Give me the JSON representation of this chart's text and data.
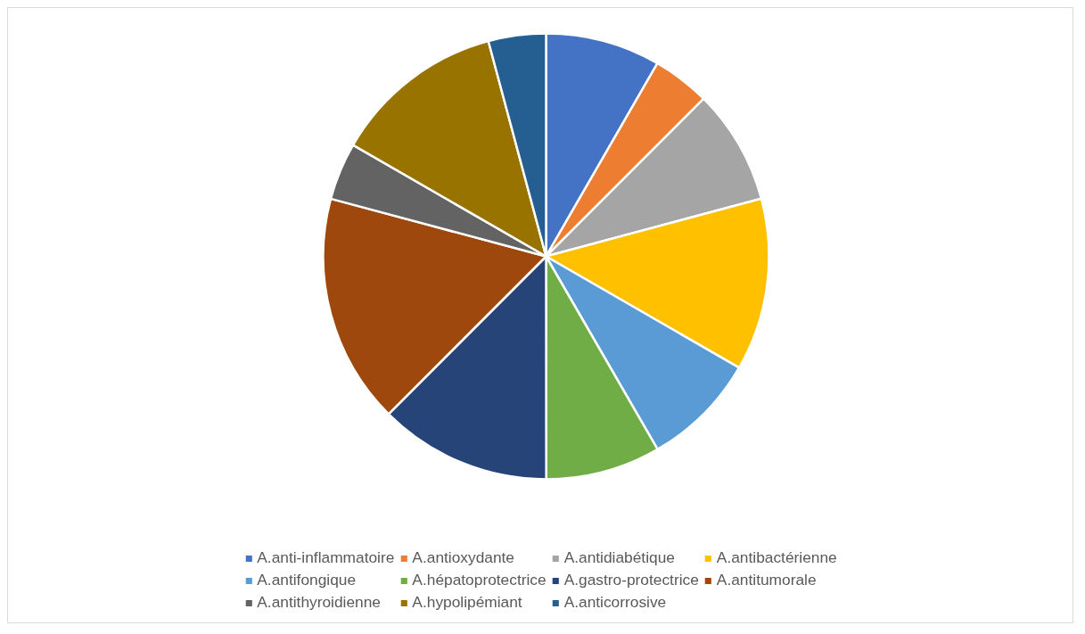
{
  "chart_data": {
    "type": "pie",
    "categories": [
      "A.anti-inflammatoire",
      "A.antioxydante",
      "A.antidiabétique",
      "A.antibactérienne",
      "A.antifongique",
      "A.hépatoprotectrice",
      "A.gastro-protectrice",
      "A.antitumorale",
      "A.antithyroidienne",
      "A.hypolipémiant",
      "A.anticorrosive"
    ],
    "values": [
      8.33,
      4.17,
      8.33,
      12.5,
      8.33,
      8.33,
      12.5,
      16.67,
      4.17,
      12.5,
      4.17
    ],
    "colors": [
      "#4472c4",
      "#ed7d31",
      "#a5a5a5",
      "#ffc000",
      "#5b9bd5",
      "#70ad47",
      "#264478",
      "#9e480e",
      "#636363",
      "#997300",
      "#255e91"
    ],
    "legend": "bottom"
  }
}
